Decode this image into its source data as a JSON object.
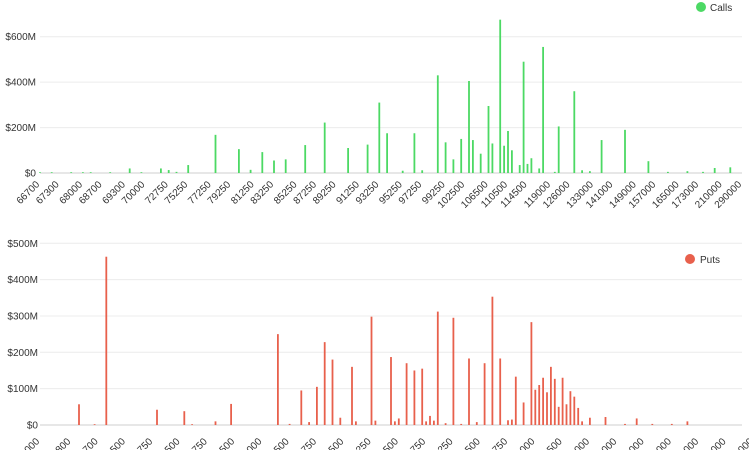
{
  "chart_data": [
    {
      "type": "bar",
      "legend": {
        "position": "top-right",
        "entries": [
          "Calls"
        ]
      },
      "series": [
        {
          "name": "Calls",
          "color": "#4cd964",
          "values": [
            {
              "x": 0,
              "y": 0
            },
            {
              "x": 3,
              "y": 2
            },
            {
              "x": 8,
              "y": 1
            },
            {
              "x": 11,
              "y": 1
            },
            {
              "x": 13,
              "y": 0
            },
            {
              "x": 18,
              "y": 2
            },
            {
              "x": 23,
              "y": 20
            },
            {
              "x": 26,
              "y": 3
            },
            {
              "x": 31,
              "y": 20
            },
            {
              "x": 33,
              "y": 13
            },
            {
              "x": 35,
              "y": 5
            },
            {
              "x": 38,
              "y": 35
            },
            {
              "x": 45,
              "y": 168
            },
            {
              "x": 51,
              "y": 105
            },
            {
              "x": 54,
              "y": 14
            },
            {
              "x": 57,
              "y": 92
            },
            {
              "x": 60,
              "y": 55
            },
            {
              "x": 63,
              "y": 60
            },
            {
              "x": 68,
              "y": 123
            },
            {
              "x": 73,
              "y": 222
            },
            {
              "x": 79,
              "y": 110
            },
            {
              "x": 84,
              "y": 125
            },
            {
              "x": 87,
              "y": 310
            },
            {
              "x": 89,
              "y": 175
            },
            {
              "x": 93,
              "y": 10
            },
            {
              "x": 96,
              "y": 175
            },
            {
              "x": 98,
              "y": 12
            },
            {
              "x": 102,
              "y": 430
            },
            {
              "x": 104,
              "y": 135
            },
            {
              "x": 106,
              "y": 60
            },
            {
              "x": 108,
              "y": 150
            },
            {
              "x": 110,
              "y": 405
            },
            {
              "x": 111,
              "y": 145
            },
            {
              "x": 113,
              "y": 85
            },
            {
              "x": 115,
              "y": 295
            },
            {
              "x": 116,
              "y": 130
            },
            {
              "x": 118,
              "y": 675
            },
            {
              "x": 119,
              "y": 120
            },
            {
              "x": 120,
              "y": 185
            },
            {
              "x": 121,
              "y": 100
            },
            {
              "x": 123,
              "y": 35
            },
            {
              "x": 124,
              "y": 490
            },
            {
              "x": 125,
              "y": 40
            },
            {
              "x": 126,
              "y": 65
            },
            {
              "x": 128,
              "y": 20
            },
            {
              "x": 129,
              "y": 555
            },
            {
              "x": 132,
              "y": 5
            },
            {
              "x": 133,
              "y": 205
            },
            {
              "x": 137,
              "y": 360
            },
            {
              "x": 139,
              "y": 12
            },
            {
              "x": 141,
              "y": 8
            },
            {
              "x": 144,
              "y": 145
            },
            {
              "x": 150,
              "y": 190
            },
            {
              "x": 156,
              "y": 52
            },
            {
              "x": 161,
              "y": 5
            },
            {
              "x": 166,
              "y": 8
            },
            {
              "x": 170,
              "y": 5
            },
            {
              "x": 173,
              "y": 22
            },
            {
              "x": 177,
              "y": 25
            }
          ]
        }
      ],
      "ylim": [
        0,
        700
      ],
      "yticks": [
        {
          "v": 0,
          "label": "$0"
        },
        {
          "v": 200,
          "label": "$200M"
        },
        {
          "v": 400,
          "label": "$400M"
        },
        {
          "v": 600,
          "label": "$600M"
        }
      ],
      "xlabels": [
        {
          "x": 0,
          "label": "66700"
        },
        {
          "x": 5,
          "label": "67300"
        },
        {
          "x": 11,
          "label": "68000"
        },
        {
          "x": 16,
          "label": "68700"
        },
        {
          "x": 22,
          "label": "69300"
        },
        {
          "x": 27,
          "label": "70000"
        },
        {
          "x": 33,
          "label": "72750"
        },
        {
          "x": 38,
          "label": "75250"
        },
        {
          "x": 44,
          "label": "77250"
        },
        {
          "x": 49,
          "label": "79250"
        },
        {
          "x": 55,
          "label": "81250"
        },
        {
          "x": 60,
          "label": "83250"
        },
        {
          "x": 66,
          "label": "85250"
        },
        {
          "x": 71,
          "label": "87250"
        },
        {
          "x": 76,
          "label": "89250"
        },
        {
          "x": 82,
          "label": "91250"
        },
        {
          "x": 87,
          "label": "93250"
        },
        {
          "x": 93,
          "label": "95250"
        },
        {
          "x": 98,
          "label": "97250"
        },
        {
          "x": 104,
          "label": "99250"
        },
        {
          "x": 109,
          "label": "102500"
        },
        {
          "x": 115,
          "label": "106500"
        },
        {
          "x": 120,
          "label": "110500"
        },
        {
          "x": 125,
          "label": "114500"
        },
        {
          "x": 131,
          "label": "119000"
        },
        {
          "x": 136,
          "label": "126000"
        },
        {
          "x": 142,
          "label": "133000"
        },
        {
          "x": 147,
          "label": "141000"
        },
        {
          "x": 153,
          "label": "149000"
        },
        {
          "x": 158,
          "label": "157000"
        },
        {
          "x": 164,
          "label": "165000"
        },
        {
          "x": 169,
          "label": "173000"
        },
        {
          "x": 175,
          "label": "210000"
        },
        {
          "x": 180,
          "label": "290000"
        }
      ]
    },
    {
      "type": "bar",
      "legend": {
        "position": "top-right",
        "entries": [
          "Puts"
        ]
      },
      "series": [
        {
          "name": "Puts",
          "color": "#e8604c",
          "values": [
            {
              "x": 10,
              "y": 57
            },
            {
              "x": 14,
              "y": 2
            },
            {
              "x": 17,
              "y": 463
            },
            {
              "x": 30,
              "y": 42
            },
            {
              "x": 37,
              "y": 38
            },
            {
              "x": 39,
              "y": 2
            },
            {
              "x": 45,
              "y": 10
            },
            {
              "x": 49,
              "y": 58
            },
            {
              "x": 61,
              "y": 250
            },
            {
              "x": 64,
              "y": 3
            },
            {
              "x": 67,
              "y": 95
            },
            {
              "x": 69,
              "y": 8
            },
            {
              "x": 71,
              "y": 105
            },
            {
              "x": 73,
              "y": 228
            },
            {
              "x": 75,
              "y": 180
            },
            {
              "x": 77,
              "y": 20
            },
            {
              "x": 80,
              "y": 160
            },
            {
              "x": 81,
              "y": 10
            },
            {
              "x": 85,
              "y": 298
            },
            {
              "x": 86,
              "y": 12
            },
            {
              "x": 90,
              "y": 187
            },
            {
              "x": 91,
              "y": 10
            },
            {
              "x": 92,
              "y": 18
            },
            {
              "x": 94,
              "y": 170
            },
            {
              "x": 96,
              "y": 150
            },
            {
              "x": 98,
              "y": 155
            },
            {
              "x": 99,
              "y": 10
            },
            {
              "x": 100,
              "y": 25
            },
            {
              "x": 101,
              "y": 12
            },
            {
              "x": 102,
              "y": 312
            },
            {
              "x": 104,
              "y": 5
            },
            {
              "x": 106,
              "y": 295
            },
            {
              "x": 108,
              "y": 3
            },
            {
              "x": 110,
              "y": 183
            },
            {
              "x": 112,
              "y": 8
            },
            {
              "x": 114,
              "y": 170
            },
            {
              "x": 116,
              "y": 353
            },
            {
              "x": 118,
              "y": 183
            },
            {
              "x": 120,
              "y": 13
            },
            {
              "x": 121,
              "y": 15
            },
            {
              "x": 122,
              "y": 133
            },
            {
              "x": 124,
              "y": 62
            },
            {
              "x": 126,
              "y": 283
            },
            {
              "x": 127,
              "y": 97
            },
            {
              "x": 128,
              "y": 110
            },
            {
              "x": 129,
              "y": 130
            },
            {
              "x": 130,
              "y": 90
            },
            {
              "x": 131,
              "y": 160
            },
            {
              "x": 132,
              "y": 127
            },
            {
              "x": 133,
              "y": 50
            },
            {
              "x": 134,
              "y": 130
            },
            {
              "x": 135,
              "y": 57
            },
            {
              "x": 136,
              "y": 93
            },
            {
              "x": 137,
              "y": 78
            },
            {
              "x": 138,
              "y": 47
            },
            {
              "x": 139,
              "y": 10
            },
            {
              "x": 141,
              "y": 20
            },
            {
              "x": 145,
              "y": 22
            },
            {
              "x": 150,
              "y": 3
            },
            {
              "x": 153,
              "y": 18
            },
            {
              "x": 157,
              "y": 3
            },
            {
              "x": 162,
              "y": 3
            },
            {
              "x": 166,
              "y": 10
            }
          ]
        }
      ],
      "ylim": [
        0,
        520
      ],
      "yticks": [
        {
          "v": 0,
          "label": "$0"
        },
        {
          "v": 100,
          "label": "$100M"
        },
        {
          "v": 200,
          "label": "$200M"
        },
        {
          "v": 300,
          "label": "$300M"
        },
        {
          "v": 400,
          "label": "$400M"
        },
        {
          "v": 500,
          "label": "$500M"
        }
      ],
      "xlabels": [
        {
          "x": 0,
          "label": "000"
        },
        {
          "x": 8,
          "label": "800"
        },
        {
          "x": 15,
          "label": "700"
        },
        {
          "x": 22,
          "label": "500"
        },
        {
          "x": 29,
          "label": "750"
        },
        {
          "x": 36,
          "label": "500"
        },
        {
          "x": 43,
          "label": "750"
        },
        {
          "x": 50,
          "label": "500"
        },
        {
          "x": 57,
          "label": "000"
        },
        {
          "x": 64,
          "label": "500"
        },
        {
          "x": 71,
          "label": "750"
        },
        {
          "x": 78,
          "label": "500"
        },
        {
          "x": 85,
          "label": "250"
        },
        {
          "x": 92,
          "label": "500"
        },
        {
          "x": 99,
          "label": "750"
        },
        {
          "x": 106,
          "label": "250"
        },
        {
          "x": 113,
          "label": "500"
        },
        {
          "x": 120,
          "label": "750"
        },
        {
          "x": 127,
          "label": "000"
        },
        {
          "x": 134,
          "label": "500"
        },
        {
          "x": 141,
          "label": "000"
        },
        {
          "x": 148,
          "label": "000"
        },
        {
          "x": 155,
          "label": "000"
        },
        {
          "x": 162,
          "label": "000"
        },
        {
          "x": 169,
          "label": "000"
        },
        {
          "x": 176,
          "label": "000"
        },
        {
          "x": 183,
          "label": "000"
        }
      ]
    }
  ]
}
